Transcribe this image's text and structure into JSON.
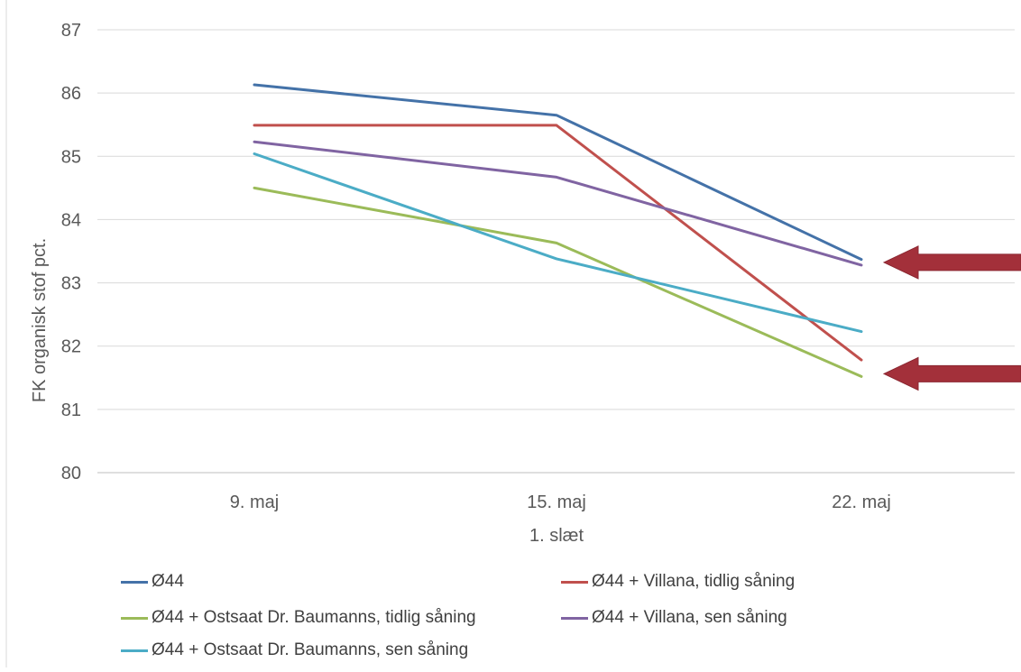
{
  "chart_data": {
    "type": "line",
    "categories": [
      "9. maj",
      "15. maj",
      "22. maj"
    ],
    "xlabel": "1. slæt",
    "ylabel": "FK organisk stof pct.",
    "ylim": [
      80,
      87
    ],
    "yticks": [
      "80",
      "81",
      "82",
      "83",
      "84",
      "85",
      "86",
      "87"
    ],
    "grid": true,
    "legend_position": "bottom",
    "series": [
      {
        "name": "Ø44",
        "color": "#4472a8",
        "values": [
          86.13,
          85.65,
          83.37
        ]
      },
      {
        "name": "Ø44 + Villana, tidlig såning",
        "color": "#c0504d",
        "values": [
          85.49,
          85.49,
          81.78
        ]
      },
      {
        "name": "Ø44 + Ostsaat Dr. Baumanns, tidlig såning",
        "color": "#9bbb59",
        "values": [
          84.5,
          83.63,
          81.52
        ]
      },
      {
        "name": "Ø44 + Villana, sen såning",
        "color": "#8064a2",
        "values": [
          85.23,
          84.67,
          83.28
        ]
      },
      {
        "name": "Ø44 + Ostsaat Dr. Baumanns, sen såning",
        "color": "#4bacc6",
        "values": [
          85.04,
          83.38,
          82.23
        ]
      }
    ],
    "annotations": [
      {
        "type": "arrow",
        "points_to": "22. maj",
        "value": 83.28,
        "color": "#a3303a"
      },
      {
        "type": "arrow",
        "points_to": "22. maj",
        "value": 81.52,
        "color": "#a3303a"
      }
    ]
  }
}
